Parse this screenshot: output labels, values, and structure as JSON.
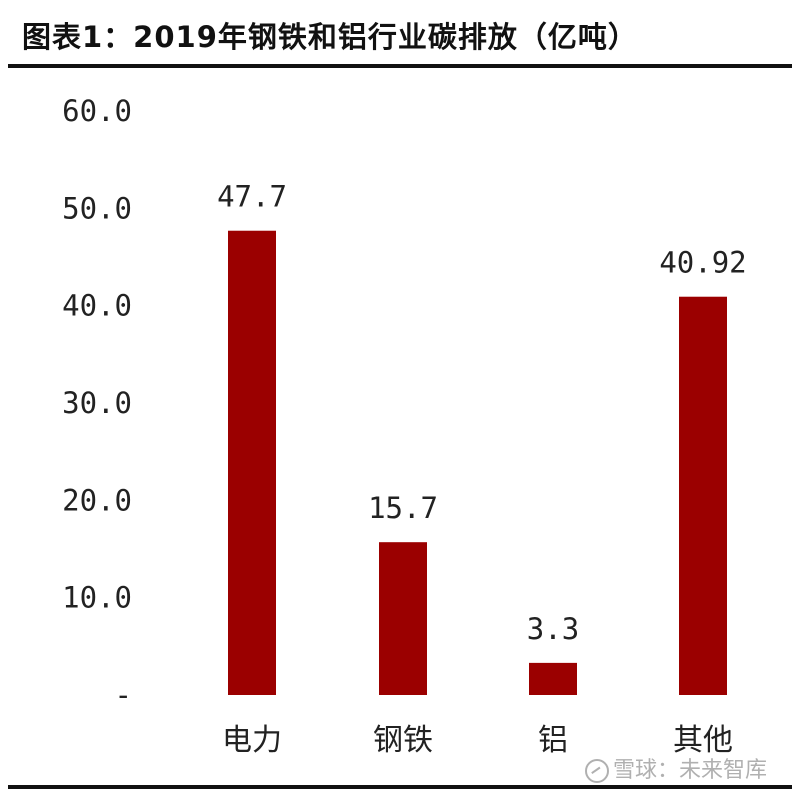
{
  "title": "图表1：2019年钢铁和铝行业碳排放（亿吨）",
  "watermark": "雪球：未来智库",
  "colors": {
    "bar": "#9b0000",
    "text": "#222222",
    "rule": "#111111"
  },
  "chart_data": {
    "type": "bar",
    "title": "图表1：2019年钢铁和铝行业碳排放（亿吨）",
    "categories": [
      "电力",
      "钢铁",
      "铝",
      "其他"
    ],
    "values": [
      47.7,
      15.7,
      3.3,
      40.92
    ],
    "value_labels": [
      "47.7",
      "15.7",
      "3.3",
      "40.92"
    ],
    "ylim": [
      0,
      60
    ],
    "yticks": [
      0,
      10,
      20,
      30,
      40,
      50,
      60
    ],
    "ytick_labels": [
      "-",
      "10.0",
      "20.0",
      "30.0",
      "40.0",
      "50.0",
      "60.0"
    ],
    "xlabel": "",
    "ylabel": "",
    "grid": false,
    "legend": "none"
  }
}
